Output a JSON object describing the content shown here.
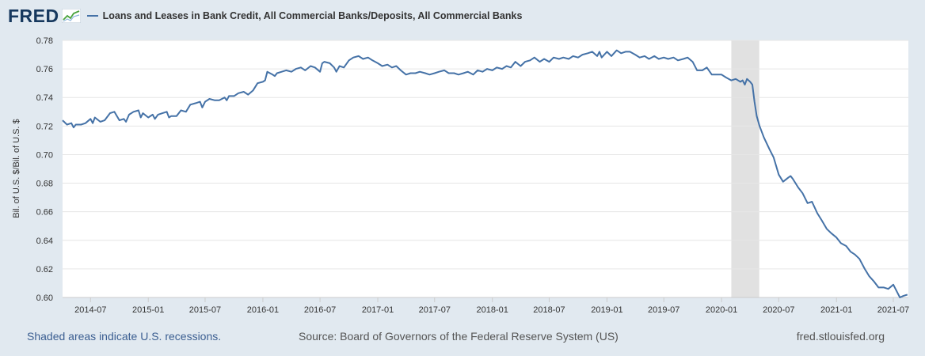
{
  "header": {
    "logo_text": "FRED",
    "legend_label": "Loans and Leases in Bank Credit, All Commercial Banks/Deposits, All Commercial Banks"
  },
  "footer": {
    "recession_note": "Shaded areas indicate U.S. recessions.",
    "source": "Source: Board of Governors of the Federal Reserve System (US)",
    "site": "fred.stlouisfed.org"
  },
  "colors": {
    "background": "#e1e9f0",
    "plot_background": "#ffffff",
    "series": "#4572a7",
    "recession": "#e1e1e1",
    "grid": "#e6e6e6"
  },
  "chart_data": {
    "type": "line",
    "title": "",
    "ylabel": "Bil. of U.S. $/Bil. of U.S. $",
    "xlabel": "",
    "ylim": [
      0.6,
      0.78
    ],
    "yticks": [
      "0.60",
      "0.62",
      "0.64",
      "0.66",
      "0.68",
      "0.70",
      "0.72",
      "0.74",
      "0.76",
      "0.78"
    ],
    "xlim": [
      "2014-04-03",
      "2021-08-18"
    ],
    "xticks": [
      {
        "date": "2014-07-01",
        "label": "2014-07"
      },
      {
        "date": "2015-01-01",
        "label": "2015-01"
      },
      {
        "date": "2015-07-01",
        "label": "2015-07"
      },
      {
        "date": "2016-01-01",
        "label": "2016-01"
      },
      {
        "date": "2016-07-01",
        "label": "2016-07"
      },
      {
        "date": "2017-01-01",
        "label": "2017-01"
      },
      {
        "date": "2017-07-01",
        "label": "2017-07"
      },
      {
        "date": "2018-01-01",
        "label": "2018-01"
      },
      {
        "date": "2018-07-01",
        "label": "2018-07"
      },
      {
        "date": "2019-01-01",
        "label": "2019-01"
      },
      {
        "date": "2019-07-01",
        "label": "2019-07"
      },
      {
        "date": "2020-01-01",
        "label": "2020-01"
      },
      {
        "date": "2020-07-01",
        "label": "2020-07"
      },
      {
        "date": "2021-01-01",
        "label": "2021-01"
      },
      {
        "date": "2021-07-01",
        "label": "2021-07"
      }
    ],
    "recessions": [
      {
        "start": "2020-02-01",
        "end": "2020-04-30"
      }
    ],
    "grid": true,
    "legend": "top-left",
    "series": [
      {
        "name": "Loans and Leases in Bank Credit, All Commercial Banks/Deposits, All Commercial Banks",
        "points": [
          [
            "2014-04-03",
            0.724
          ],
          [
            "2014-04-17",
            0.721
          ],
          [
            "2014-05-01",
            0.722
          ],
          [
            "2014-05-08",
            0.719
          ],
          [
            "2014-05-15",
            0.721
          ],
          [
            "2014-06-01",
            0.721
          ],
          [
            "2014-06-15",
            0.722
          ],
          [
            "2014-07-01",
            0.725
          ],
          [
            "2014-07-08",
            0.722
          ],
          [
            "2014-07-15",
            0.726
          ],
          [
            "2014-08-01",
            0.723
          ],
          [
            "2014-08-15",
            0.724
          ],
          [
            "2014-09-01",
            0.729
          ],
          [
            "2014-09-15",
            0.73
          ],
          [
            "2014-10-01",
            0.724
          ],
          [
            "2014-10-15",
            0.725
          ],
          [
            "2014-10-22",
            0.723
          ],
          [
            "2014-11-01",
            0.728
          ],
          [
            "2014-11-15",
            0.73
          ],
          [
            "2014-12-01",
            0.731
          ],
          [
            "2014-12-08",
            0.726
          ],
          [
            "2014-12-15",
            0.729
          ],
          [
            "2015-01-01",
            0.726
          ],
          [
            "2015-01-15",
            0.728
          ],
          [
            "2015-01-22",
            0.725
          ],
          [
            "2015-02-01",
            0.728
          ],
          [
            "2015-02-15",
            0.729
          ],
          [
            "2015-03-01",
            0.73
          ],
          [
            "2015-03-08",
            0.726
          ],
          [
            "2015-03-15",
            0.727
          ],
          [
            "2015-04-01",
            0.727
          ],
          [
            "2015-04-15",
            0.731
          ],
          [
            "2015-05-01",
            0.73
          ],
          [
            "2015-05-15",
            0.735
          ],
          [
            "2015-06-01",
            0.736
          ],
          [
            "2015-06-15",
            0.737
          ],
          [
            "2015-06-22",
            0.733
          ],
          [
            "2015-07-01",
            0.737
          ],
          [
            "2015-07-15",
            0.739
          ],
          [
            "2015-08-01",
            0.738
          ],
          [
            "2015-08-15",
            0.738
          ],
          [
            "2015-09-01",
            0.74
          ],
          [
            "2015-09-08",
            0.738
          ],
          [
            "2015-09-15",
            0.741
          ],
          [
            "2015-10-01",
            0.741
          ],
          [
            "2015-10-15",
            0.743
          ],
          [
            "2015-11-01",
            0.744
          ],
          [
            "2015-11-15",
            0.742
          ],
          [
            "2015-12-01",
            0.745
          ],
          [
            "2015-12-15",
            0.75
          ],
          [
            "2016-01-01",
            0.751
          ],
          [
            "2016-01-08",
            0.752
          ],
          [
            "2016-01-15",
            0.758
          ],
          [
            "2016-02-01",
            0.756
          ],
          [
            "2016-02-08",
            0.755
          ],
          [
            "2016-02-15",
            0.757
          ],
          [
            "2016-03-01",
            0.758
          ],
          [
            "2016-03-15",
            0.759
          ],
          [
            "2016-04-01",
            0.758
          ],
          [
            "2016-04-15",
            0.76
          ],
          [
            "2016-05-01",
            0.761
          ],
          [
            "2016-05-15",
            0.759
          ],
          [
            "2016-06-01",
            0.762
          ],
          [
            "2016-06-15",
            0.761
          ],
          [
            "2016-07-01",
            0.758
          ],
          [
            "2016-07-08",
            0.764
          ],
          [
            "2016-07-15",
            0.765
          ],
          [
            "2016-08-01",
            0.764
          ],
          [
            "2016-08-15",
            0.761
          ],
          [
            "2016-08-22",
            0.758
          ],
          [
            "2016-09-01",
            0.762
          ],
          [
            "2016-09-15",
            0.761
          ],
          [
            "2016-10-01",
            0.766
          ],
          [
            "2016-10-15",
            0.768
          ],
          [
            "2016-11-01",
            0.769
          ],
          [
            "2016-11-15",
            0.767
          ],
          [
            "2016-12-01",
            0.768
          ],
          [
            "2016-12-15",
            0.766
          ],
          [
            "2017-01-01",
            0.764
          ],
          [
            "2017-01-15",
            0.762
          ],
          [
            "2017-02-01",
            0.763
          ],
          [
            "2017-02-15",
            0.761
          ],
          [
            "2017-03-01",
            0.762
          ],
          [
            "2017-03-15",
            0.759
          ],
          [
            "2017-04-01",
            0.756
          ],
          [
            "2017-04-15",
            0.757
          ],
          [
            "2017-05-01",
            0.757
          ],
          [
            "2017-05-15",
            0.758
          ],
          [
            "2017-06-01",
            0.757
          ],
          [
            "2017-06-15",
            0.756
          ],
          [
            "2017-07-01",
            0.757
          ],
          [
            "2017-07-15",
            0.758
          ],
          [
            "2017-08-01",
            0.759
          ],
          [
            "2017-08-15",
            0.757
          ],
          [
            "2017-09-01",
            0.757
          ],
          [
            "2017-09-15",
            0.756
          ],
          [
            "2017-10-01",
            0.757
          ],
          [
            "2017-10-15",
            0.758
          ],
          [
            "2017-11-01",
            0.756
          ],
          [
            "2017-11-15",
            0.759
          ],
          [
            "2017-12-01",
            0.758
          ],
          [
            "2017-12-15",
            0.76
          ],
          [
            "2018-01-01",
            0.759
          ],
          [
            "2018-01-15",
            0.761
          ],
          [
            "2018-02-01",
            0.76
          ],
          [
            "2018-02-15",
            0.762
          ],
          [
            "2018-03-01",
            0.761
          ],
          [
            "2018-03-15",
            0.765
          ],
          [
            "2018-04-01",
            0.762
          ],
          [
            "2018-04-15",
            0.765
          ],
          [
            "2018-05-01",
            0.766
          ],
          [
            "2018-05-15",
            0.768
          ],
          [
            "2018-06-01",
            0.765
          ],
          [
            "2018-06-15",
            0.767
          ],
          [
            "2018-07-01",
            0.765
          ],
          [
            "2018-07-15",
            0.768
          ],
          [
            "2018-08-01",
            0.767
          ],
          [
            "2018-08-15",
            0.768
          ],
          [
            "2018-09-01",
            0.767
          ],
          [
            "2018-09-15",
            0.769
          ],
          [
            "2018-10-01",
            0.768
          ],
          [
            "2018-10-15",
            0.77
          ],
          [
            "2018-11-01",
            0.771
          ],
          [
            "2018-11-15",
            0.772
          ],
          [
            "2018-12-01",
            0.769
          ],
          [
            "2018-12-08",
            0.772
          ],
          [
            "2018-12-15",
            0.768
          ],
          [
            "2019-01-01",
            0.772
          ],
          [
            "2019-01-15",
            0.769
          ],
          [
            "2019-02-01",
            0.773
          ],
          [
            "2019-02-15",
            0.771
          ],
          [
            "2019-03-01",
            0.772
          ],
          [
            "2019-03-15",
            0.772
          ],
          [
            "2019-04-01",
            0.77
          ],
          [
            "2019-04-15",
            0.768
          ],
          [
            "2019-05-01",
            0.769
          ],
          [
            "2019-05-15",
            0.767
          ],
          [
            "2019-06-01",
            0.769
          ],
          [
            "2019-06-15",
            0.767
          ],
          [
            "2019-07-01",
            0.768
          ],
          [
            "2019-07-15",
            0.767
          ],
          [
            "2019-08-01",
            0.768
          ],
          [
            "2019-08-15",
            0.766
          ],
          [
            "2019-09-01",
            0.767
          ],
          [
            "2019-09-15",
            0.768
          ],
          [
            "2019-10-01",
            0.765
          ],
          [
            "2019-10-15",
            0.759
          ],
          [
            "2019-11-01",
            0.759
          ],
          [
            "2019-11-15",
            0.761
          ],
          [
            "2019-12-01",
            0.756
          ],
          [
            "2019-12-15",
            0.756
          ],
          [
            "2020-01-01",
            0.756
          ],
          [
            "2020-01-15",
            0.754
          ],
          [
            "2020-02-01",
            0.752
          ],
          [
            "2020-02-15",
            0.753
          ],
          [
            "2020-03-01",
            0.751
          ],
          [
            "2020-03-08",
            0.752
          ],
          [
            "2020-03-15",
            0.749
          ],
          [
            "2020-03-22",
            0.753
          ],
          [
            "2020-04-01",
            0.751
          ],
          [
            "2020-04-08",
            0.749
          ],
          [
            "2020-04-15",
            0.737
          ],
          [
            "2020-04-22",
            0.727
          ],
          [
            "2020-05-01",
            0.72
          ],
          [
            "2020-05-15",
            0.712
          ],
          [
            "2020-06-01",
            0.704
          ],
          [
            "2020-06-15",
            0.698
          ],
          [
            "2020-07-01",
            0.686
          ],
          [
            "2020-07-15",
            0.681
          ],
          [
            "2020-08-01",
            0.684
          ],
          [
            "2020-08-08",
            0.685
          ],
          [
            "2020-08-15",
            0.683
          ],
          [
            "2020-09-01",
            0.677
          ],
          [
            "2020-09-15",
            0.673
          ],
          [
            "2020-10-01",
            0.666
          ],
          [
            "2020-10-15",
            0.667
          ],
          [
            "2020-11-01",
            0.659
          ],
          [
            "2020-11-15",
            0.654
          ],
          [
            "2020-12-01",
            0.648
          ],
          [
            "2020-12-15",
            0.645
          ],
          [
            "2021-01-01",
            0.642
          ],
          [
            "2021-01-15",
            0.638
          ],
          [
            "2021-02-01",
            0.636
          ],
          [
            "2021-02-15",
            0.632
          ],
          [
            "2021-03-01",
            0.63
          ],
          [
            "2021-03-15",
            0.627
          ],
          [
            "2021-04-01",
            0.62
          ],
          [
            "2021-04-15",
            0.615
          ],
          [
            "2021-05-01",
            0.611
          ],
          [
            "2021-05-15",
            0.607
          ],
          [
            "2021-06-01",
            0.607
          ],
          [
            "2021-06-15",
            0.606
          ],
          [
            "2021-07-01",
            0.609
          ],
          [
            "2021-07-15",
            0.603
          ],
          [
            "2021-07-22",
            0.6
          ],
          [
            "2021-08-01",
            0.601
          ],
          [
            "2021-08-15",
            0.602
          ]
        ]
      }
    ]
  }
}
